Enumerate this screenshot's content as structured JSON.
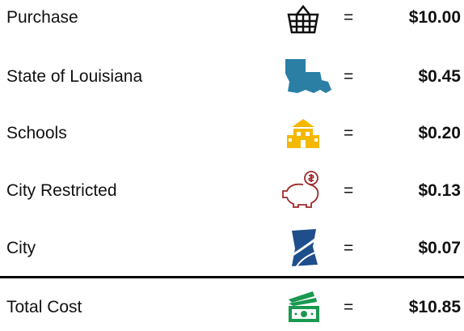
{
  "table": {
    "rows": [
      {
        "label": "Purchase",
        "sign": "=",
        "amount": "$10.00"
      },
      {
        "label": "State of Louisiana",
        "sign": "=",
        "amount": "$0.45"
      },
      {
        "label": "Schools",
        "sign": "=",
        "amount": "$0.20"
      },
      {
        "label": "City Restricted",
        "sign": "=",
        "amount": "$0.13"
      },
      {
        "label": "City",
        "sign": "=",
        "amount": "$0.07"
      },
      {
        "label": "Total Cost",
        "sign": "=",
        "amount": "$10.85"
      }
    ]
  }
}
